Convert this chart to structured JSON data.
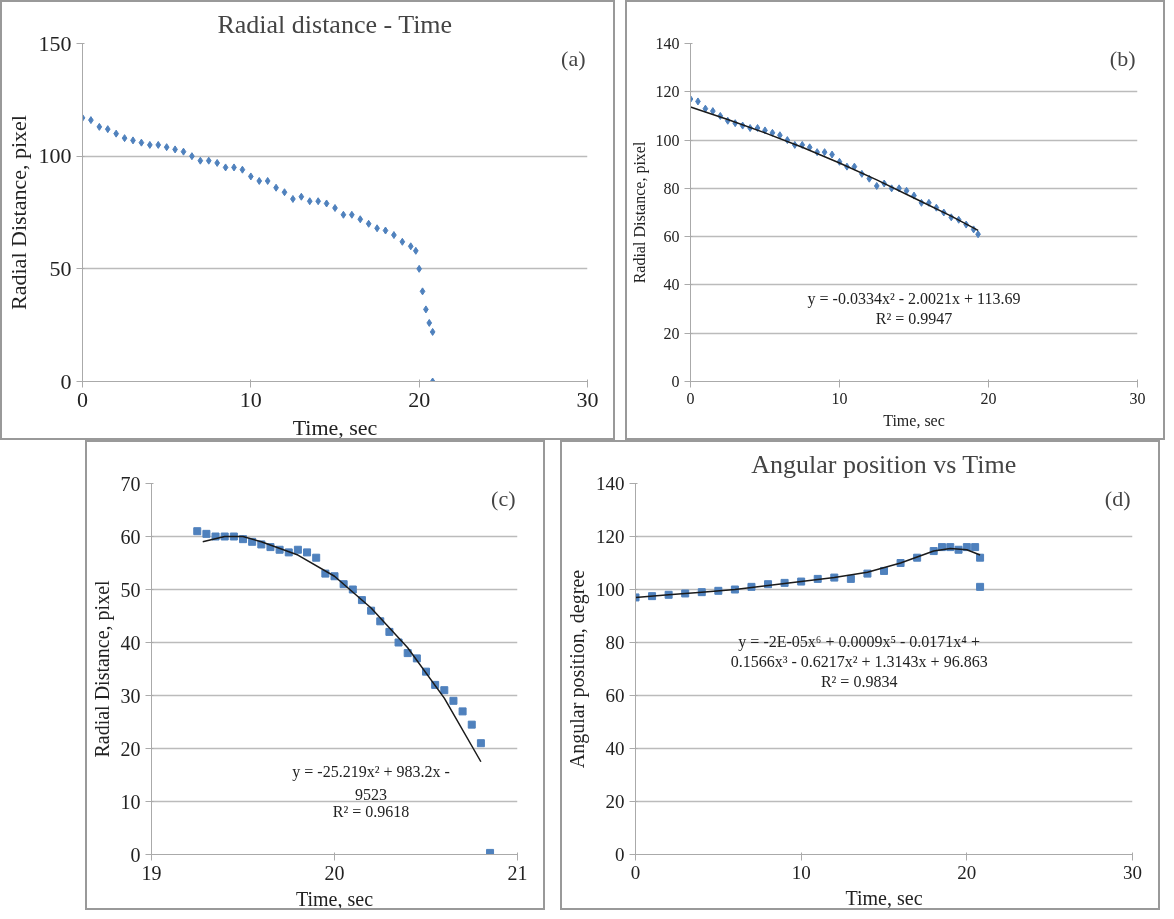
{
  "chart_data": [
    {
      "type": "scatter",
      "title": "Radial distance - Time",
      "xlabel": "Time, sec",
      "ylabel": "Radial Distance, pixel",
      "xlim": [
        0,
        30
      ],
      "ylim": [
        0,
        150
      ],
      "xticks": [
        0,
        10,
        20,
        30
      ],
      "yticks": [
        0,
        50,
        100,
        150
      ],
      "grid": "y",
      "marker": "diamond",
      "annotations": [
        "(a)"
      ],
      "series": [
        {
          "color": "#4f81bd",
          "x": [
            0,
            0.5,
            1,
            1.5,
            2,
            2.5,
            3,
            3.5,
            4,
            4.5,
            5,
            5.5,
            6,
            6.5,
            7,
            7.5,
            8,
            8.5,
            9,
            9.5,
            10,
            10.5,
            11,
            11.5,
            12,
            12.5,
            13,
            13.5,
            14,
            14.5,
            15,
            15.5,
            16,
            16.5,
            17,
            17.5,
            18,
            18.5,
            19,
            19.5,
            19.8,
            20,
            20.2,
            20.4,
            20.6,
            20.8,
            20.8
          ],
          "values": [
            117,
            116,
            113,
            112,
            110,
            108,
            107,
            106,
            105,
            105,
            104,
            103,
            102,
            100,
            98,
            98,
            97,
            95,
            95,
            94,
            91,
            89,
            89,
            86,
            84,
            81,
            82,
            80,
            80,
            79,
            77,
            74,
            74,
            72,
            70,
            68,
            67,
            65,
            62,
            60,
            58,
            50,
            40,
            32,
            26,
            22,
            0
          ]
        }
      ]
    },
    {
      "type": "scatter",
      "xlabel": "Time, sec",
      "ylabel": "Radial Distance, pixel",
      "xlim": [
        0,
        30
      ],
      "ylim": [
        0,
        140
      ],
      "xticks": [
        0,
        10,
        20,
        30
      ],
      "yticks": [
        0,
        20,
        40,
        60,
        80,
        100,
        120,
        140
      ],
      "grid": "y",
      "marker": "diamond",
      "annotations": [
        "(b)",
        "y = -0.0334x² - 2.0021x + 113.69",
        "R² = 0.9947"
      ],
      "series": [
        {
          "color": "#4f81bd",
          "x": [
            0,
            0.5,
            1,
            1.5,
            2,
            2.5,
            3,
            3.5,
            4,
            4.5,
            5,
            5.5,
            6,
            6.5,
            7,
            7.5,
            8,
            8.5,
            9,
            9.5,
            10,
            10.5,
            11,
            11.5,
            12,
            12.5,
            13,
            13.5,
            14,
            14.5,
            15,
            15.5,
            16,
            16.5,
            17,
            17.5,
            18,
            18.5,
            19,
            19.3
          ],
          "values": [
            117,
            116,
            113,
            112,
            110,
            108,
            107,
            106,
            105,
            105,
            104,
            103,
            102,
            100,
            98,
            98,
            97,
            95,
            95,
            94,
            91,
            89,
            89,
            86,
            84,
            81,
            82,
            80,
            80,
            79,
            77,
            74,
            74,
            72,
            70,
            68,
            67,
            65,
            63,
            61
          ]
        },
        {
          "type": "line",
          "marker": "none",
          "color": "#1a1a1a",
          "x": [
            0,
            2.5,
            5,
            7.5,
            10,
            12.5,
            15,
            17.5,
            19.3
          ],
          "values": [
            113.7,
            108.5,
            103,
            97,
            90.5,
            83.5,
            76,
            68.5,
            62.6
          ]
        }
      ]
    },
    {
      "type": "scatter",
      "xlabel": "Time, sec",
      "ylabel": "Radial Distance, pixel",
      "xlim": [
        19,
        21
      ],
      "ylim": [
        0,
        70
      ],
      "xticks": [
        19,
        20,
        21
      ],
      "yticks": [
        0,
        10,
        20,
        30,
        40,
        50,
        60,
        70
      ],
      "grid": "y",
      "marker": "square",
      "annotations": [
        "(c)",
        "y = -25.219x² + 983.2x -",
        "9523",
        "R² = 0.9618"
      ],
      "series": [
        {
          "color": "#4f81bd",
          "x": [
            19.25,
            19.3,
            19.35,
            19.4,
            19.45,
            19.5,
            19.55,
            19.6,
            19.65,
            19.7,
            19.75,
            19.8,
            19.85,
            19.9,
            19.95,
            20.0,
            20.05,
            20.1,
            20.15,
            20.2,
            20.25,
            20.3,
            20.35,
            20.4,
            20.45,
            20.5,
            20.55,
            20.6,
            20.65,
            20.7,
            20.75,
            20.8,
            20.85
          ],
          "values": [
            61,
            60.5,
            60,
            60,
            60,
            59.5,
            59,
            58.5,
            58,
            57.5,
            57,
            57.5,
            57,
            56,
            53,
            52.5,
            51,
            50,
            48,
            46,
            44,
            42,
            40,
            38,
            37,
            34.5,
            32,
            31,
            29,
            27,
            24.5,
            21,
            0.3
          ]
        },
        {
          "type": "line",
          "marker": "none",
          "color": "#1a1a1a",
          "x": [
            19.28,
            19.4,
            19.5,
            19.6,
            19.8,
            20.0,
            20.2,
            20.4,
            20.6,
            20.8
          ],
          "values": [
            59,
            60,
            60,
            59,
            56.5,
            52.5,
            46.5,
            39,
            29.5,
            17.5
          ]
        }
      ]
    },
    {
      "type": "scatter",
      "title": "Angular position vs Time",
      "xlabel": "Time, sec",
      "ylabel": "Angular position, degree",
      "xlim": [
        0,
        30
      ],
      "ylim": [
        0,
        140
      ],
      "xticks": [
        0,
        10,
        20,
        30
      ],
      "yticks": [
        0,
        20,
        40,
        60,
        80,
        100,
        120,
        140
      ],
      "grid": "y",
      "marker": "square",
      "annotations": [
        "(d)",
        "y = -2E-05x⁶ + 0.0009x⁵ - 0.0171x⁴ +",
        "0.1566x³ - 0.6217x² + 1.3143x + 96.863",
        "R² = 0.9834"
      ],
      "series": [
        {
          "color": "#4f81bd",
          "x": [
            0,
            1,
            2,
            3,
            4,
            5,
            6,
            7,
            8,
            9,
            10,
            11,
            12,
            13,
            14,
            15,
            16,
            17,
            18,
            18.5,
            19,
            19.5,
            20,
            20.5,
            20.8,
            20.8
          ],
          "values": [
            97,
            97.5,
            98,
            98.5,
            99,
            99.5,
            100,
            101,
            102,
            102.5,
            103,
            104,
            104.5,
            104,
            106,
            107,
            110,
            112,
            114.5,
            116,
            116,
            115,
            116,
            116,
            112,
            101
          ]
        },
        {
          "type": "line",
          "marker": "none",
          "color": "#1a1a1a",
          "x": [
            0,
            2,
            4,
            6,
            8,
            10,
            12,
            14,
            16,
            18,
            19,
            20,
            20.8
          ],
          "values": [
            97,
            98,
            99,
            100,
            101.5,
            103,
            104.5,
            106.5,
            110,
            114.5,
            115.5,
            115,
            113
          ]
        }
      ]
    }
  ]
}
